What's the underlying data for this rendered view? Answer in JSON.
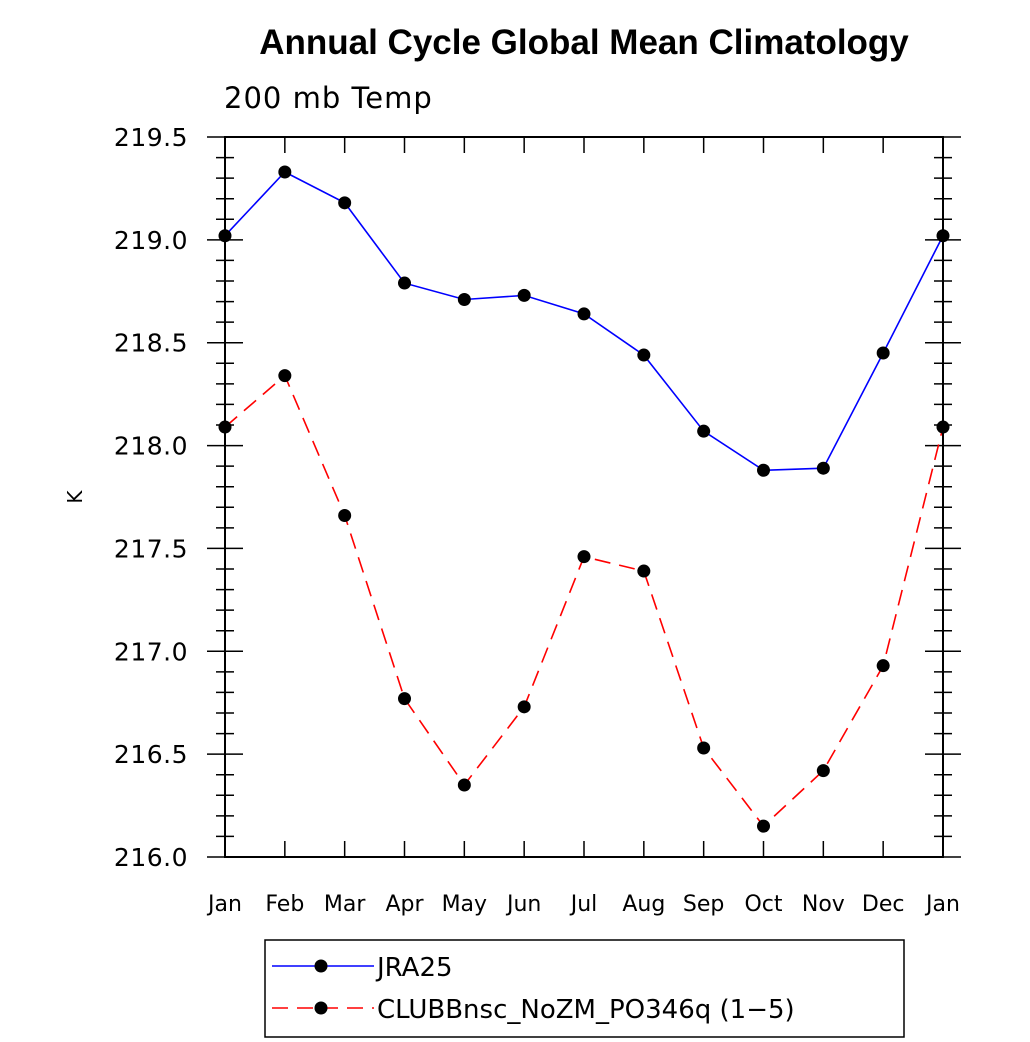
{
  "chart_data": {
    "type": "line",
    "title": "Annual Cycle Global Mean Climatology",
    "subtitle": "200 mb Temp",
    "xlabel": "",
    "ylabel": "K",
    "categories": [
      "Jan",
      "Feb",
      "Mar",
      "Apr",
      "May",
      "Jun",
      "Jul",
      "Aug",
      "Sep",
      "Oct",
      "Nov",
      "Dec",
      "Jan"
    ],
    "ylim": [
      216.0,
      219.5
    ],
    "yticks": [
      "216.0",
      "216.5",
      "217.0",
      "217.5",
      "218.0",
      "218.5",
      "219.0",
      "219.5"
    ],
    "legend_position": "bottom",
    "grid": false,
    "series": [
      {
        "name": "JRA25",
        "color": "#0000ff",
        "style": "solid",
        "marker": "filled-circle",
        "values": [
          219.02,
          219.33,
          219.18,
          218.79,
          218.71,
          218.73,
          218.64,
          218.44,
          218.07,
          217.88,
          217.89,
          218.45,
          219.02
        ]
      },
      {
        "name": "CLUBBnsc_NoZM_PO346q (1−5)",
        "color": "#ff0000",
        "style": "dashed",
        "marker": "filled-circle",
        "values": [
          218.09,
          218.34,
          217.66,
          216.77,
          216.35,
          216.73,
          217.46,
          217.39,
          216.53,
          216.15,
          216.42,
          216.93,
          218.09
        ]
      }
    ]
  }
}
